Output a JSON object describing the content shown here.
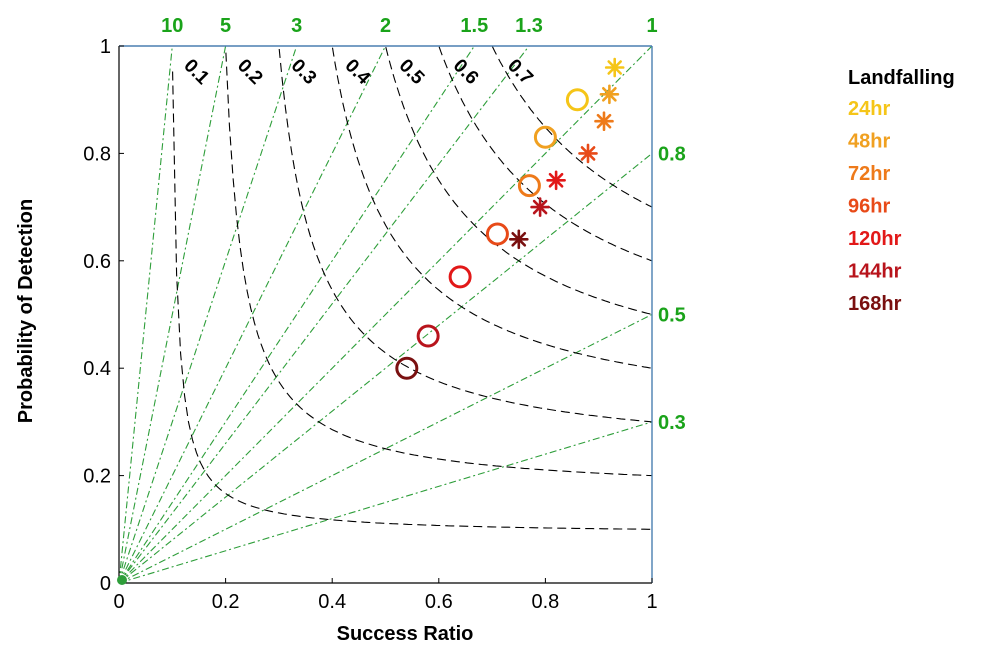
{
  "chart_data": {
    "type": "scatter",
    "xlabel": "Success Ratio",
    "ylabel": "Probability of Detection",
    "xlim": [
      0,
      1
    ],
    "ylim": [
      0,
      1
    ],
    "x_ticks": [
      0,
      0.2,
      0.4,
      0.6,
      0.8,
      1
    ],
    "x_tick_labels": [
      "0",
      "0.2",
      "0.4",
      "0.6",
      "0.8",
      "1"
    ],
    "y_ticks": [
      0,
      0.2,
      0.4,
      0.6,
      0.8,
      1
    ],
    "y_tick_labels": [
      "0",
      "0.2",
      "0.4",
      "0.6",
      "0.8",
      "1"
    ],
    "bias_lines": [
      {
        "value": 10,
        "label": "10"
      },
      {
        "value": 5,
        "label": "5"
      },
      {
        "value": 3,
        "label": "3"
      },
      {
        "value": 2,
        "label": "2"
      },
      {
        "value": 1.5,
        "label": "1.5"
      },
      {
        "value": 1.3,
        "label": "1.3"
      },
      {
        "value": 1,
        "label": "1"
      },
      {
        "value": 0.8,
        "label": "0.8"
      },
      {
        "value": 0.5,
        "label": "0.5"
      },
      {
        "value": 0.3,
        "label": "0.3"
      }
    ],
    "csi_contours": [
      {
        "value": 0.1,
        "label": "0.1"
      },
      {
        "value": 0.2,
        "label": "0.2"
      },
      {
        "value": 0.3,
        "label": "0.3"
      },
      {
        "value": 0.4,
        "label": "0.4"
      },
      {
        "value": 0.5,
        "label": "0.5"
      },
      {
        "value": 0.6,
        "label": "0.6"
      },
      {
        "value": 0.7,
        "label": "0.7"
      }
    ],
    "legend_title": "Landfalling",
    "legend_position": "right",
    "series": [
      {
        "name": "24hr",
        "color": "#f5c518",
        "circle": {
          "x": 0.86,
          "y": 0.9
        },
        "star": {
          "x": 0.93,
          "y": 0.96
        }
      },
      {
        "name": "48hr",
        "color": "#f0a020",
        "circle": {
          "x": 0.8,
          "y": 0.83
        },
        "star": {
          "x": 0.92,
          "y": 0.91
        }
      },
      {
        "name": "72hr",
        "color": "#ee7a1a",
        "circle": {
          "x": 0.77,
          "y": 0.74
        },
        "star": {
          "x": 0.91,
          "y": 0.86
        }
      },
      {
        "name": "96hr",
        "color": "#e84a18",
        "circle": {
          "x": 0.71,
          "y": 0.65
        },
        "star": {
          "x": 0.88,
          "y": 0.8
        }
      },
      {
        "name": "120hr",
        "color": "#e21818",
        "circle": {
          "x": 0.64,
          "y": 0.57
        },
        "star": {
          "x": 0.82,
          "y": 0.75
        }
      },
      {
        "name": "144hr",
        "color": "#b8141c",
        "circle": {
          "x": 0.58,
          "y": 0.46
        },
        "star": {
          "x": 0.79,
          "y": 0.7
        }
      },
      {
        "name": "168hr",
        "color": "#7a1010",
        "circle": {
          "x": 0.54,
          "y": 0.4
        },
        "star": {
          "x": 0.75,
          "y": 0.64
        }
      }
    ],
    "grid": false
  }
}
